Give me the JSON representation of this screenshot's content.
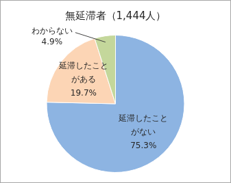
{
  "chart_data": {
    "type": "pie",
    "title": "無延滞者（1,444人）",
    "categories": [
      "延滞したことがない",
      "延滞したことがある",
      "わからない"
    ],
    "values": [
      75.3,
      19.7,
      4.9
    ],
    "value_labels": [
      "75.3%",
      "19.7%",
      "4.9%"
    ],
    "colors": [
      "#8db4e2",
      "#fcd5b5",
      "#c4d79b"
    ],
    "data_labels": true
  }
}
